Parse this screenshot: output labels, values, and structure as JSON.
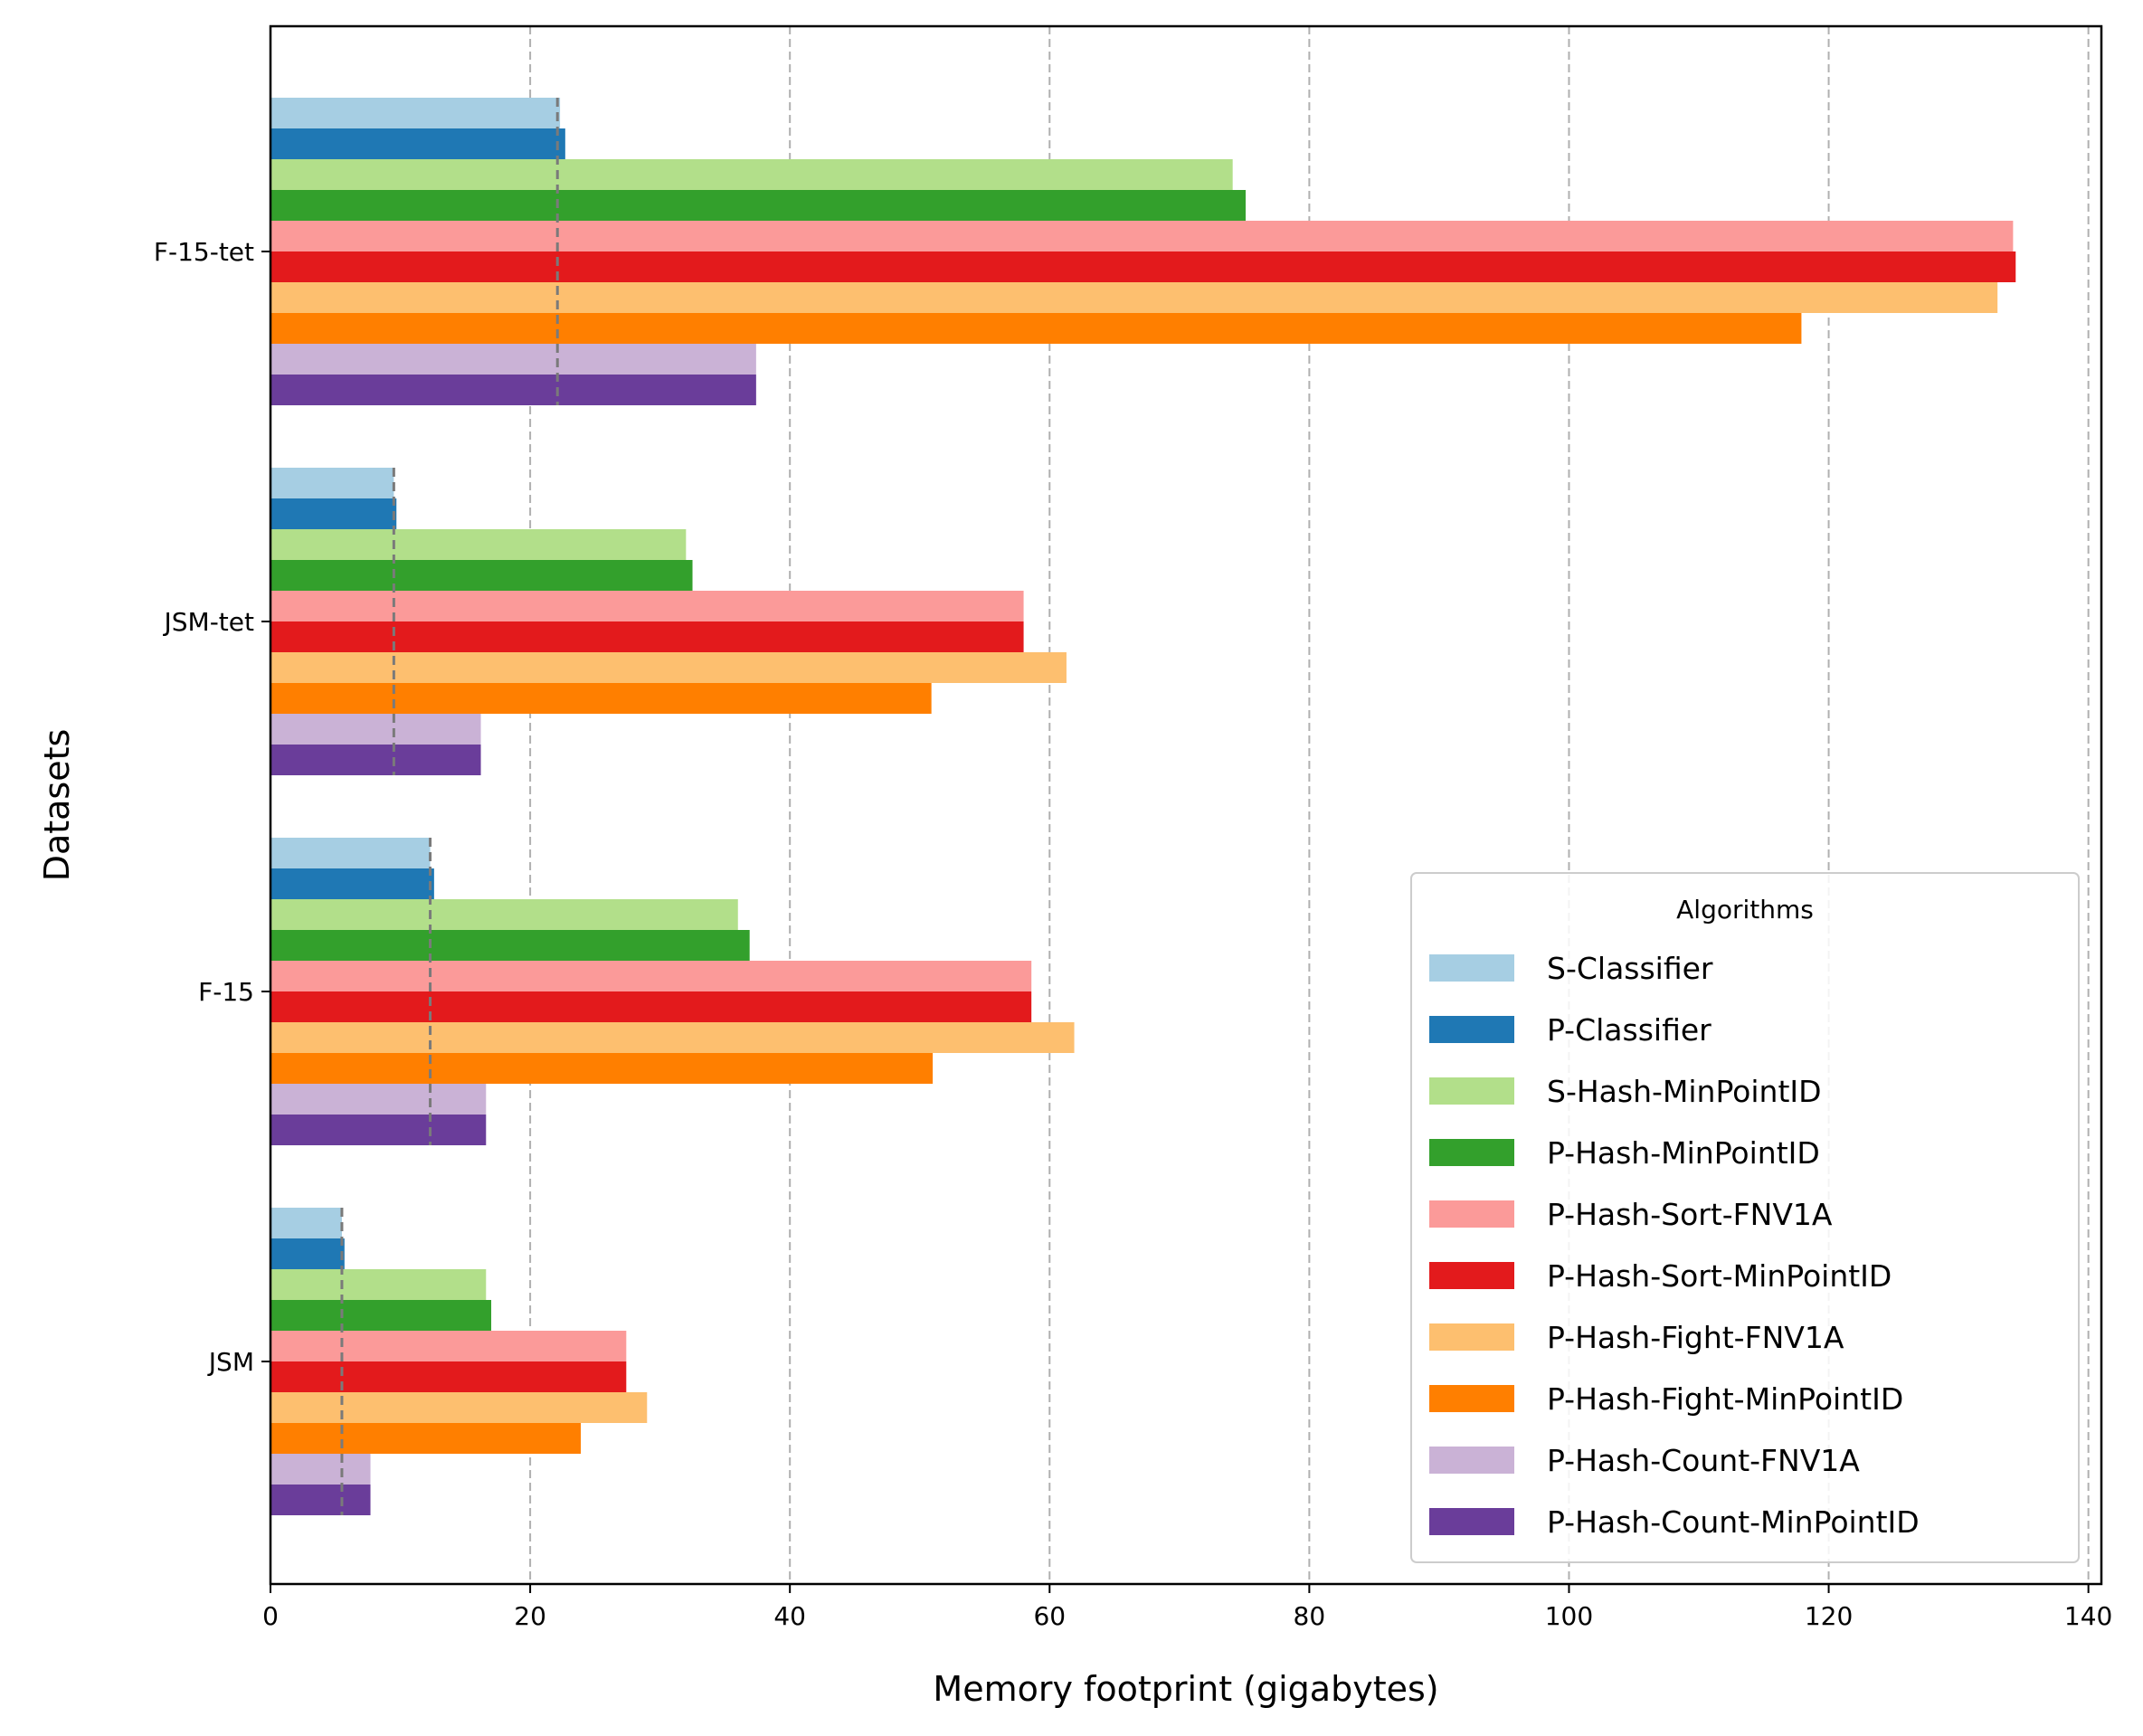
{
  "chart_data": {
    "type": "bar",
    "orientation": "horizontal",
    "xlabel": "Memory footprint (gigabytes)",
    "ylabel": "Datasets",
    "xlim": [
      0,
      141
    ],
    "xticks": [
      0,
      20,
      40,
      60,
      80,
      100,
      120,
      140
    ],
    "grid": "vertical dashed",
    "categories": [
      "JSM",
      "F-15",
      "JSM-tet",
      "F-15-tet"
    ],
    "series": [
      {
        "name": "S-Classifier",
        "color": "#a6cee3",
        "values": [
          5.5,
          12.3,
          9.5,
          22.3
        ]
      },
      {
        "name": "P-Classifier",
        "color": "#1f78b4",
        "values": [
          5.7,
          12.6,
          9.7,
          22.7
        ]
      },
      {
        "name": "S-Hash-MinPointID",
        "color": "#b2df8a",
        "values": [
          16.6,
          36.0,
          32.0,
          74.1
        ]
      },
      {
        "name": "P-Hash-MinPointID",
        "color": "#33a02c",
        "values": [
          17.0,
          36.9,
          32.5,
          75.1
        ]
      },
      {
        "name": "P-Hash-Sort-FNV1A",
        "color": "#fb9a99",
        "values": [
          27.4,
          58.6,
          58.0,
          134.2
        ]
      },
      {
        "name": "P-Hash-Sort-MinPointID",
        "color": "#e31a1c",
        "values": [
          27.4,
          58.6,
          58.0,
          134.4
        ]
      },
      {
        "name": "P-Hash-Fight-FNV1A",
        "color": "#fdbf6f",
        "values": [
          29.0,
          61.9,
          61.3,
          133.0
        ]
      },
      {
        "name": "P-Hash-Fight-MinPointID",
        "color": "#ff7f00",
        "values": [
          23.9,
          51.0,
          50.9,
          117.9
        ]
      },
      {
        "name": "P-Hash-Count-FNV1A",
        "color": "#cab2d6",
        "values": [
          7.7,
          16.6,
          16.2,
          37.4
        ]
      },
      {
        "name": "P-Hash-Count-MinPointID",
        "color": "#6a3d9a",
        "values": [
          7.7,
          16.6,
          16.2,
          37.4
        ]
      }
    ],
    "reference_lines": [
      5.5,
      12.3,
      9.5,
      22.1
    ],
    "legend": {
      "title": "Algorithms",
      "placement": "lower-right"
    }
  }
}
